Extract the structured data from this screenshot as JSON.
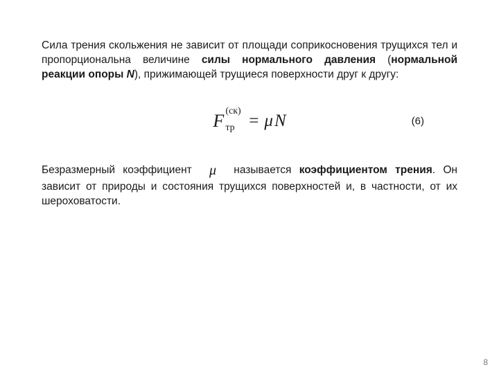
{
  "para1": {
    "t1": "Сила трения скольжения не зависит от площади соприкосновения трущихся тел и пропорциональна величине ",
    "b1": "силы нормального давления",
    "t2": " (",
    "b2": "нормальной реакции опоры ",
    "bi": "N",
    "t3": "), прижимающей трущиеся поверхности друг к другу:"
  },
  "equation": {
    "F": "F",
    "sup": "(ск)",
    "sub": "тр",
    "eq": "=",
    "mu": "μ",
    "N": "N",
    "number": "(6)"
  },
  "para2": {
    "t1": "Безразмерный коэффициент ",
    "mu": "μ",
    "t2": " называется ",
    "b1": "коэффициентом трения",
    "t3": ". Он зависит от природы и состояния трущихся поверхностей и, в частности, от их шероховатости."
  },
  "page_number": "8"
}
